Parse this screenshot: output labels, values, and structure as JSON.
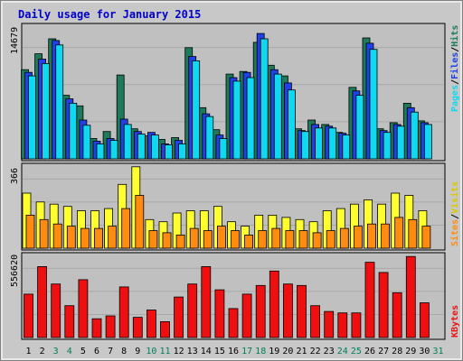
{
  "chart_data": {
    "title": "Daily usage for January 2015",
    "categories": [
      "1",
      "2",
      "3",
      "4",
      "5",
      "6",
      "7",
      "8",
      "9",
      "10",
      "11",
      "12",
      "13",
      "14",
      "15",
      "16",
      "17",
      "18",
      "19",
      "20",
      "21",
      "22",
      "23",
      "24",
      "25",
      "26",
      "27",
      "28",
      "29",
      "30",
      "31"
    ],
    "weekend_days": [
      "3",
      "4",
      "10",
      "11",
      "17",
      "18",
      "24",
      "25",
      "31"
    ],
    "colors": {
      "title": "#0000cc",
      "weekday_label": "#000000",
      "weekend_label": "#00805b",
      "hits": "#1e7a5a",
      "files": "#2040e8",
      "pages": "#10d8f0",
      "visits": "#ffff30",
      "sites": "#ff8c10",
      "kbytes": "#ee1010"
    },
    "panels": [
      {
        "type": "bar",
        "ymax_label": "14679",
        "ymax": 14679,
        "legend": [
          "Pages",
          "/",
          "Files",
          "/",
          "Hits"
        ],
        "series": [
          {
            "name": "Hits",
            "values": [
              10100,
              11900,
              13600,
              7200,
              6000,
              2300,
              3100,
              9500,
              3400,
              2600,
              2200,
              2400,
              12600,
              5800,
              3300,
              9600,
              9900,
              13200,
              10600,
              9400,
              3400,
              4400,
              3900,
              3000,
              8100,
              13700,
              3400,
              4100,
              6300,
              4300,
              null
            ]
          },
          {
            "name": "Files",
            "values": [
              9800,
              11300,
              13400,
              6800,
              4400,
              2000,
              2300,
              4500,
              3100,
              3000,
              1700,
              2100,
              11600,
              5100,
              2700,
              9200,
              9800,
              14200,
              10100,
              8600,
              3200,
              3900,
              3700,
              2900,
              7700,
              13100,
              3200,
              3900,
              5800,
              4100,
              null
            ]
          },
          {
            "name": "Pages",
            "values": [
              9400,
              10800,
              12900,
              6300,
              3800,
              1700,
              2100,
              3900,
              2800,
              2700,
              1600,
              1700,
              11100,
              4800,
              2300,
              8800,
              9200,
              13600,
              9600,
              7800,
              3100,
              3500,
              3500,
              2700,
              7200,
              12400,
              3000,
              3700,
              5300,
              3900,
              null
            ]
          }
        ]
      },
      {
        "type": "bar",
        "ymax_label": "366",
        "ymax": 366,
        "legend": [
          "Sites",
          "/",
          "Visits"
        ],
        "series": [
          {
            "name": "Visits",
            "values": [
              250,
              210,
              200,
              190,
              170,
              170,
              180,
              290,
              370,
              130,
              120,
              160,
              170,
              170,
              190,
              120,
              100,
              150,
              150,
              140,
              130,
              120,
              170,
              180,
              200,
              220,
              200,
              250,
              240,
              170,
              null
            ]
          },
          {
            "name": "Sites",
            "values": [
              150,
              130,
              110,
              100,
              90,
              90,
              100,
              180,
              240,
              80,
              70,
              60,
              90,
              80,
              100,
              80,
              60,
              80,
              90,
              80,
              80,
              70,
              80,
              90,
              100,
              110,
              110,
              140,
              130,
              100,
              null
            ]
          }
        ]
      },
      {
        "type": "bar",
        "ymax_label": "556620",
        "ymax": 556620,
        "legend": [
          "KBytes"
        ],
        "series": [
          {
            "name": "KBytes",
            "values": [
              300000,
              490000,
              370000,
              220000,
              400000,
              130000,
              150000,
              350000,
              140000,
              190000,
              110000,
              280000,
              370000,
              490000,
              330000,
              200000,
              300000,
              360000,
              460000,
              370000,
              360000,
              220000,
              180000,
              170000,
              170000,
              520000,
              450000,
              310000,
              560000,
              240000,
              null
            ]
          }
        ]
      }
    ]
  }
}
